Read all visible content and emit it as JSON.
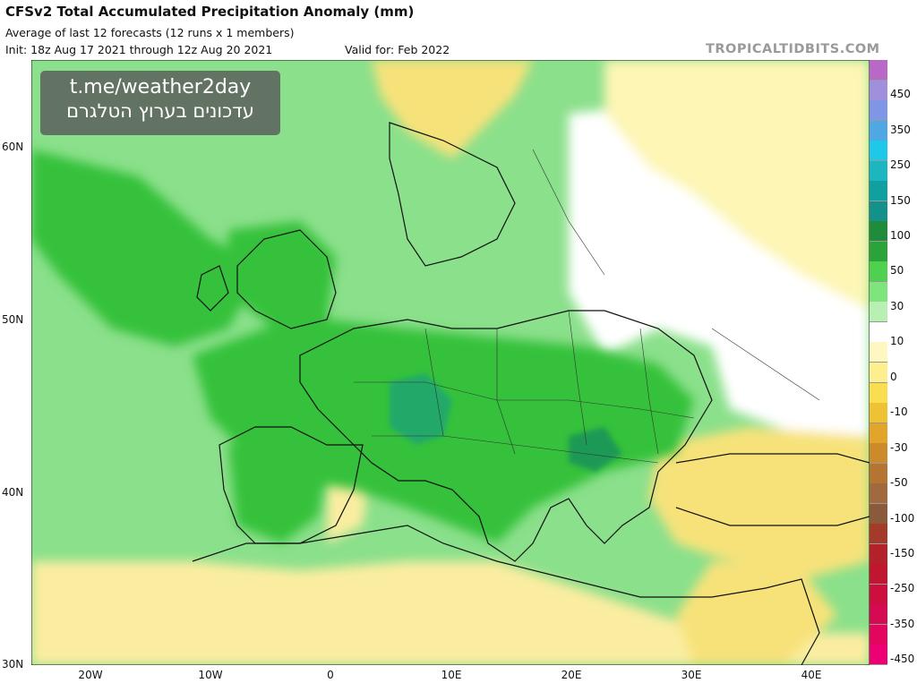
{
  "header": {
    "title": "CFSv2 Total Accumulated Precipitation Anomaly (mm)",
    "subtitle": "Average of last 12 forecasts (12 runs x 1 members)",
    "init": "Init: 18z Aug 17 2021 through 12z Aug 20 2021",
    "valid": "Valid for: Feb 2022",
    "brand": "TROPICALTIDBITS.COM"
  },
  "watermark": {
    "line1": "t.me/weather2day",
    "line2": "עדכונים בערוץ הטלגרם"
  },
  "map": {
    "lat_labels": [
      "60N",
      "50N",
      "40N",
      "30N"
    ],
    "lon_labels": [
      "20W",
      "10W",
      "0",
      "10E",
      "20E",
      "30E",
      "40E"
    ],
    "lat_range": [
      30,
      65
    ],
    "lon_range": [
      -25,
      45
    ],
    "regions": [
      {
        "name": "wet-atlantic",
        "color": "#8be08b"
      },
      {
        "name": "wet-central-europe",
        "color": "#35c13a"
      },
      {
        "name": "wet-alps-core",
        "color": "#23a96a"
      },
      {
        "name": "dry-eastern-europe",
        "color": "#ffffff"
      },
      {
        "name": "dry-russia",
        "color": "#fdf6b5"
      },
      {
        "name": "dry-turkey",
        "color": "#f7e27a"
      },
      {
        "name": "dry-north-africa",
        "color": "#fbeda0"
      }
    ]
  },
  "legend": {
    "labels": [
      "450",
      "350",
      "250",
      "150",
      "100",
      "50",
      "30",
      "10",
      "0",
      "-10",
      "-30",
      "-50",
      "-100",
      "-150",
      "-250",
      "-350",
      "-450"
    ],
    "colors": [
      "#ba68c8",
      "#9f8fdc",
      "#7f96e6",
      "#4fa7e4",
      "#1ec8e8",
      "#1cb5c0",
      "#11a0a0",
      "#12928a",
      "#1f8c3c",
      "#2aa33a",
      "#4fd14f",
      "#7ee47c",
      "#b8f0b4",
      "#ffffff",
      "#fff7c2",
      "#fdef8e",
      "#f9df4f",
      "#efc233",
      "#e3a42a",
      "#cc8a2b",
      "#b57532",
      "#a06a3e",
      "#8b5a3a",
      "#a33a2a",
      "#b3222a",
      "#c0162f",
      "#cc0f3c",
      "#d60a52",
      "#e2065e",
      "#ec0074"
    ]
  }
}
